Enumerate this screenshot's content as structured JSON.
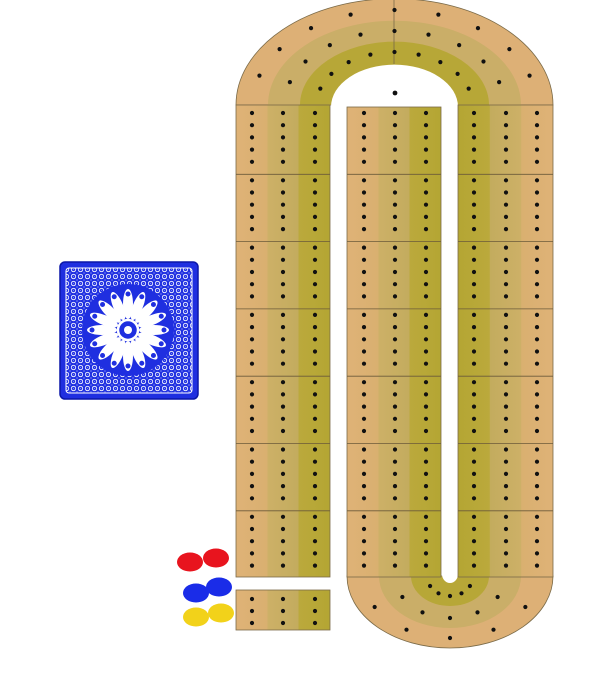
{
  "game": {
    "name": "cribbage",
    "board_colors": {
      "outer_track": "#DEB075",
      "middle_track": "#C9AE66",
      "inner_track": "#B8A836",
      "peg_hole": "#111111",
      "divider": "#6B5A3A",
      "background": "#FFFFFF"
    },
    "deck": {
      "face": "down",
      "back_color": "#1F2FE0",
      "pattern_color": "#FFFFFF",
      "icon": "rosette-pattern-icon"
    },
    "pegs": [
      {
        "color_name": "red",
        "color": "#E8141E",
        "count": 2
      },
      {
        "color_name": "blue",
        "color": "#1A2CE8",
        "count": 2
      },
      {
        "color_name": "yellow",
        "color": "#F2D21A",
        "count": 2
      }
    ]
  }
}
